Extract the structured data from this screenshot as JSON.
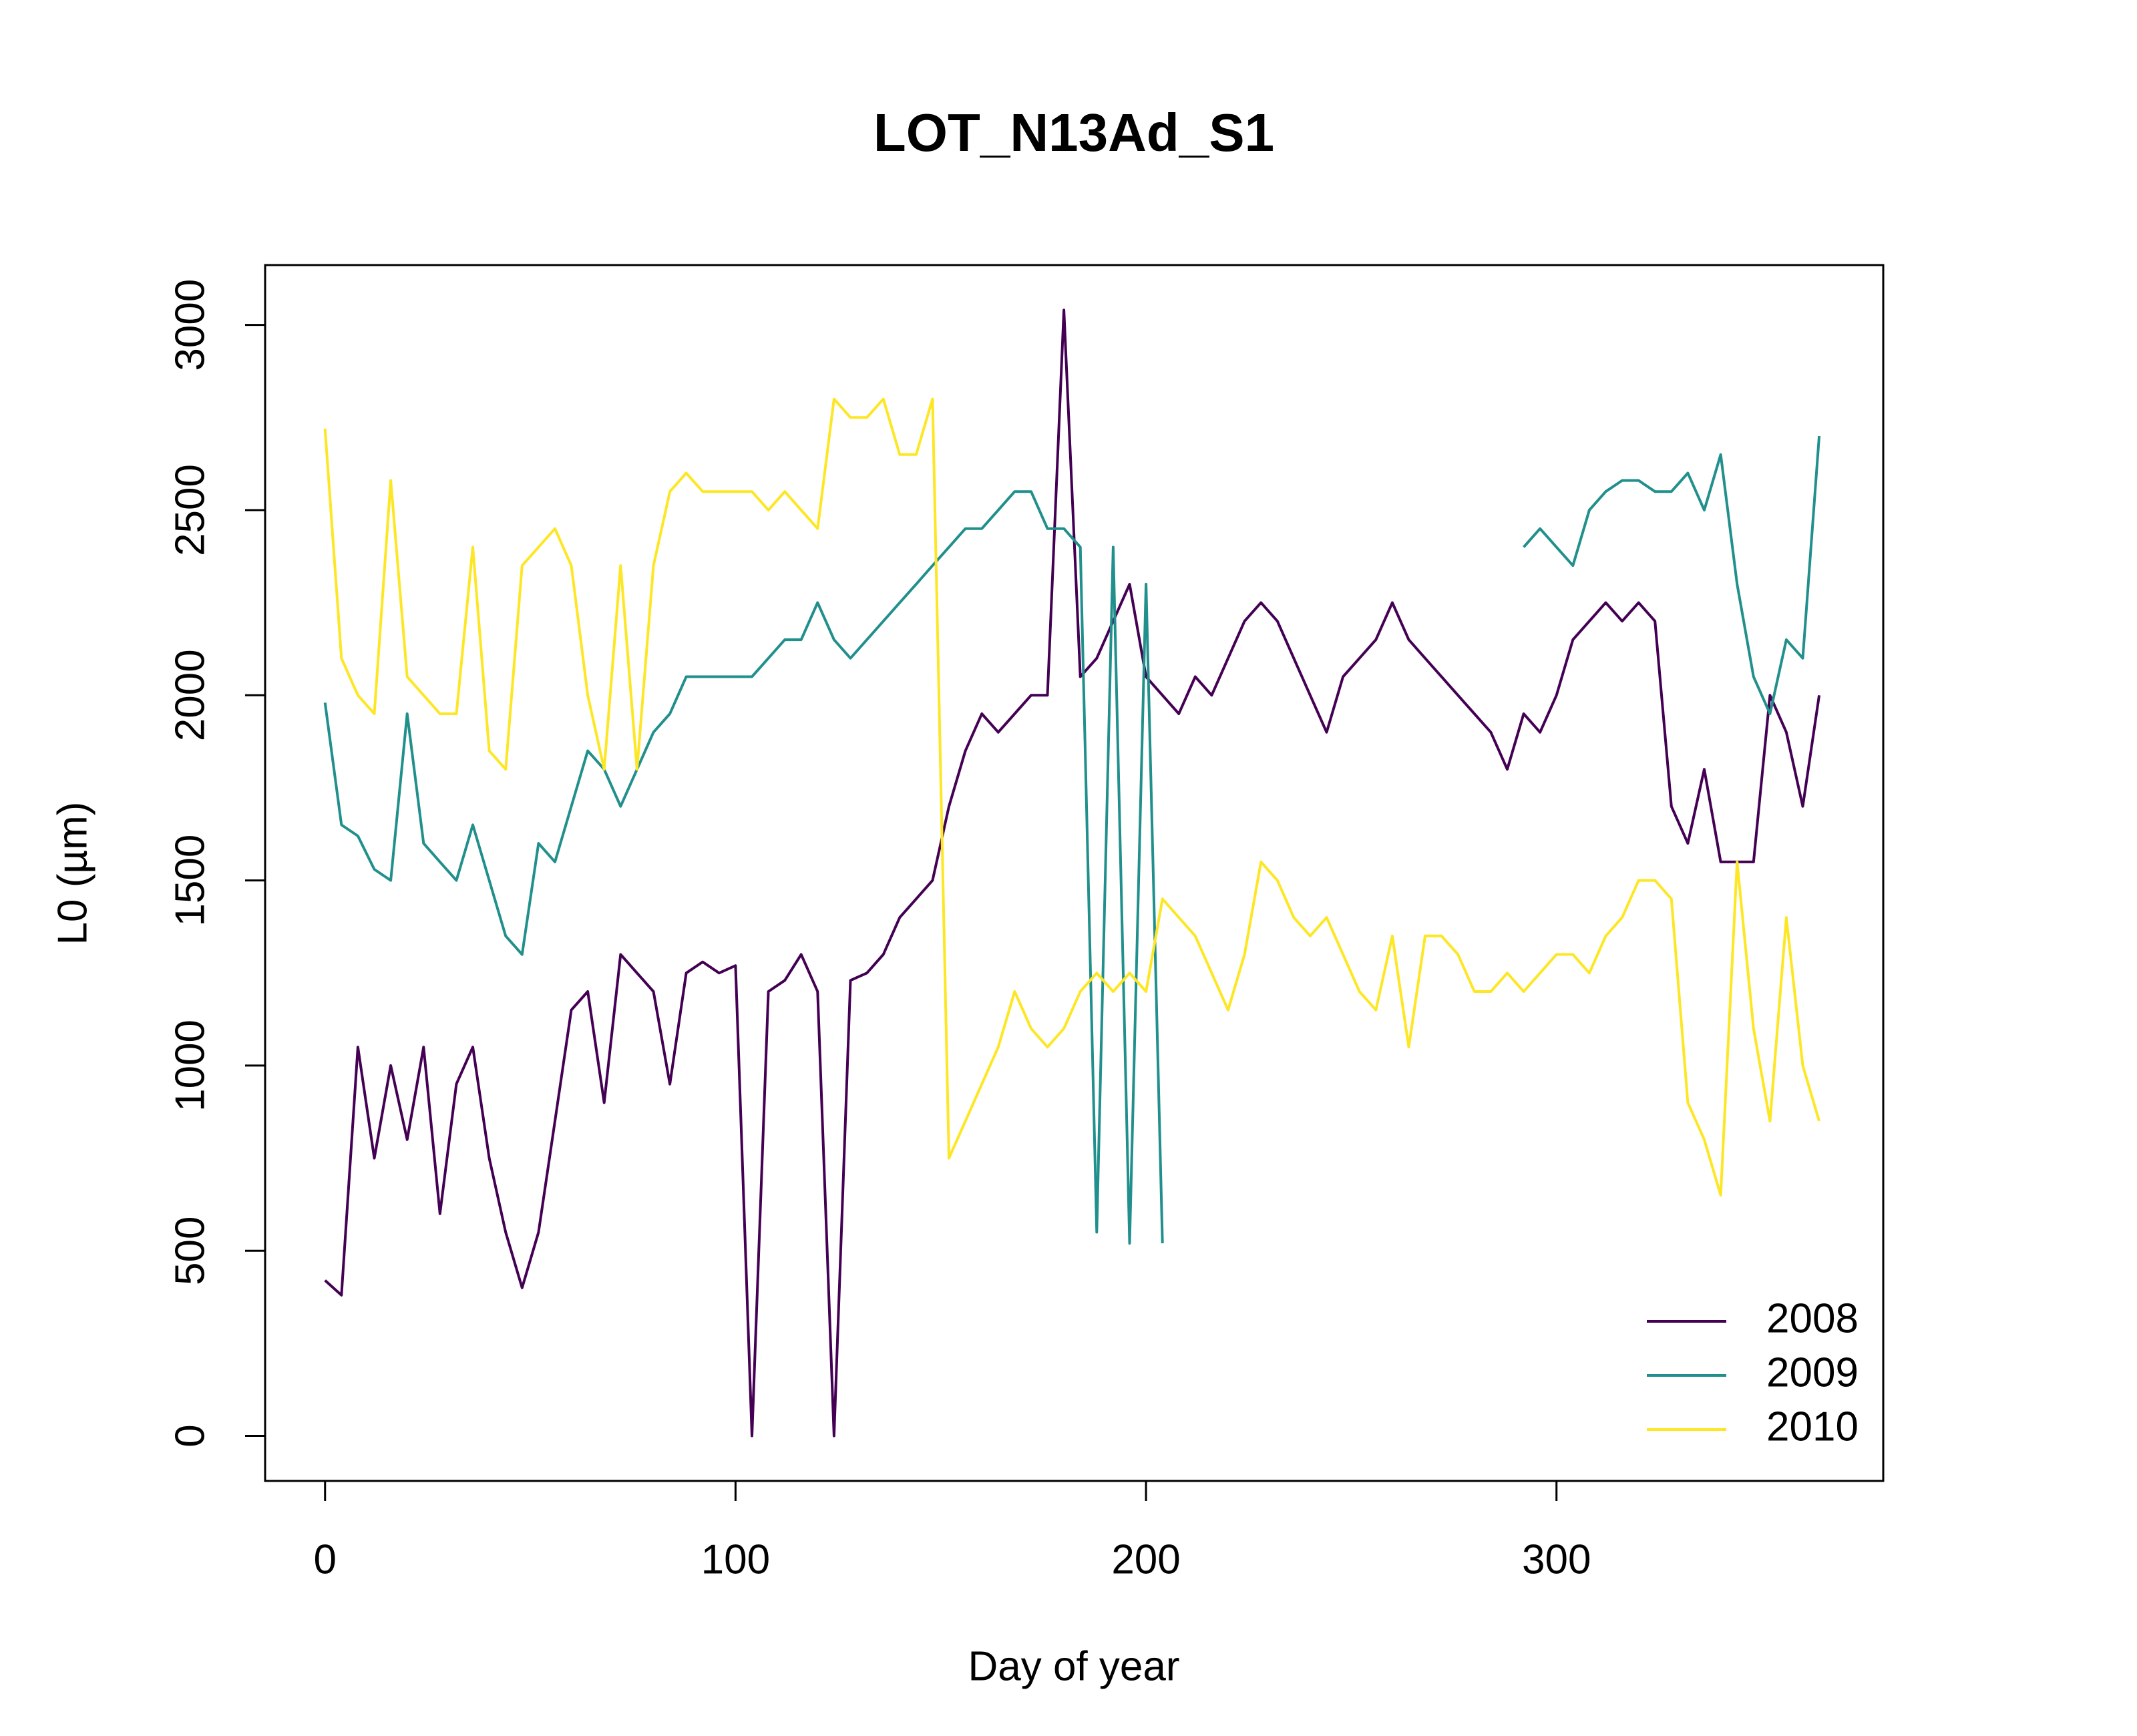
{
  "chart_data": {
    "type": "line",
    "title": "LOT_N13Ad_S1",
    "x_label": "Day of year",
    "y_label": "L0 (µm)",
    "x": [
      0,
      4,
      8,
      12,
      16,
      20,
      24,
      28,
      32,
      36,
      40,
      44,
      48,
      52,
      56,
      60,
      64,
      68,
      72,
      76,
      80,
      84,
      88,
      92,
      96,
      100,
      104,
      108,
      112,
      116,
      120,
      124,
      128,
      132,
      136,
      140,
      144,
      148,
      152,
      156,
      160,
      164,
      168,
      172,
      176,
      180,
      184,
      188,
      192,
      196,
      200,
      204,
      208,
      212,
      216,
      220,
      224,
      228,
      232,
      236,
      240,
      244,
      248,
      252,
      256,
      260,
      264,
      268,
      272,
      276,
      280,
      284,
      288,
      292,
      296,
      300,
      304,
      308,
      312,
      316,
      320,
      324,
      328,
      332,
      336,
      340,
      344,
      348,
      352,
      356,
      360,
      364
    ],
    "series": [
      {
        "name": "2008",
        "color": "#440154",
        "values": [
          420,
          380,
          1050,
          750,
          1000,
          800,
          1050,
          600,
          950,
          1050,
          750,
          550,
          400,
          550,
          850,
          1150,
          1200,
          900,
          1300,
          1250,
          1200,
          950,
          1250,
          1280,
          1250,
          1270,
          0,
          1200,
          1230,
          1300,
          1200,
          0,
          1230,
          1250,
          1300,
          1400,
          1450,
          1500,
          1700,
          1850,
          1950,
          1900,
          1950,
          2000,
          2000,
          3040,
          2050,
          2100,
          2200,
          2300,
          2050,
          2000,
          1950,
          2050,
          2000,
          2100,
          2200,
          2250,
          2200,
          2100,
          2000,
          1900,
          2050,
          2100,
          2150,
          2250,
          2150,
          2100,
          2050,
          2000,
          1950,
          1900,
          1800,
          1950,
          1900,
          2000,
          2150,
          2200,
          2250,
          2200,
          2250,
          2200,
          1700,
          1600,
          1800,
          1550,
          1550,
          1550,
          2000,
          1900,
          1700,
          2000
        ]
      },
      {
        "name": "2009",
        "color": "#21908C",
        "values": [
          1980,
          1650,
          1620,
          1530,
          1500,
          1950,
          1600,
          1550,
          1500,
          1650,
          1500,
          1350,
          1300,
          1600,
          1550,
          1700,
          1850,
          1800,
          1700,
          1800,
          1900,
          1950,
          2050,
          2050,
          2050,
          2050,
          2050,
          2100,
          2150,
          2150,
          2250,
          2150,
          2100,
          2150,
          2200,
          2250,
          2300,
          2350,
          2400,
          2450,
          2450,
          2500,
          2550,
          2550,
          2450,
          2450,
          2400,
          550,
          2400,
          520,
          2300,
          520,
          null,
          null,
          null,
          null,
          null,
          null,
          null,
          null,
          null,
          null,
          null,
          null,
          null,
          null,
          null,
          null,
          null,
          null,
          null,
          null,
          null,
          2400,
          2450,
          2400,
          2350,
          2500,
          2550,
          2580,
          2580,
          2550,
          2550,
          2600,
          2500,
          2650,
          2300,
          2050,
          1950,
          2150,
          2100,
          2700
        ]
      },
      {
        "name": "2010",
        "color": "#FDE725",
        "values": [
          2720,
          2100,
          2000,
          1950,
          2580,
          2050,
          2000,
          1950,
          1950,
          2400,
          1850,
          1800,
          2350,
          2400,
          2450,
          2350,
          2000,
          1800,
          2350,
          1800,
          2350,
          2550,
          2600,
          2550,
          2550,
          2550,
          2550,
          2500,
          2550,
          2500,
          2450,
          2800,
          2750,
          2750,
          2800,
          2650,
          2650,
          2800,
          750,
          850,
          950,
          1050,
          1200,
          1100,
          1050,
          1100,
          1200,
          1250,
          1200,
          1250,
          1200,
          1450,
          1400,
          1350,
          1250,
          1150,
          1300,
          1550,
          1500,
          1400,
          1350,
          1400,
          1300,
          1200,
          1150,
          1350,
          1050,
          1350,
          1350,
          1300,
          1200,
          1200,
          1250,
          1200,
          1250,
          1300,
          1300,
          1250,
          1350,
          1400,
          1500,
          1500,
          1450,
          900,
          800,
          650,
          1550,
          1100,
          850,
          1400,
          1000,
          850
        ]
      }
    ],
    "xlim": [
      -14.6,
      379.6
    ],
    "ylim": [
      -121.6,
      3161.6
    ],
    "xticks": [
      0,
      100,
      200,
      300
    ],
    "yticks": [
      0,
      500,
      1000,
      1500,
      2000,
      2500,
      3000
    ],
    "legend": "bottomright"
  }
}
